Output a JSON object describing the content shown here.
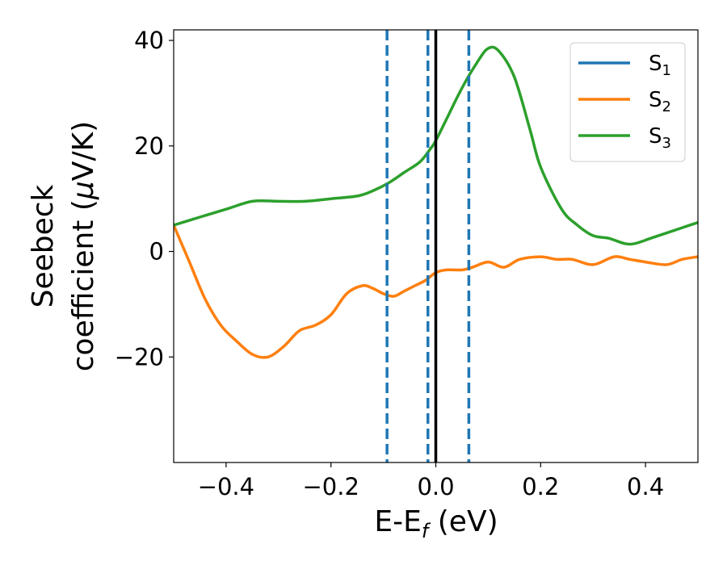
{
  "chart_data": {
    "type": "line",
    "xlabel": "E-E",
    "xlabel_subscript": "f",
    "xlabel_unit": " (eV)",
    "ylabel_line1": "Seebeck",
    "ylabel_line2": "coefficient  (",
    "ylabel_mu": "μ",
    "ylabel_unit": "V/K)",
    "xlim": [
      -0.5,
      0.5
    ],
    "ylim": [
      -40,
      42
    ],
    "xticks": [
      -0.4,
      -0.2,
      0.0,
      0.2,
      0.4
    ],
    "xtick_labels": [
      "−0.4",
      "−0.2",
      "0.0",
      "0.2",
      "0.4"
    ],
    "yticks": [
      -20,
      0,
      20,
      40
    ],
    "ytick_labels": [
      "−20",
      "0",
      "20",
      "40"
    ],
    "grid": false,
    "legend_position": "top-right",
    "vlines": [
      {
        "x": -0.093,
        "style": "dashed",
        "color": "#1f77b4"
      },
      {
        "x": -0.015,
        "style": "dashed",
        "color": "#1f77b4"
      },
      {
        "x": 0.063,
        "style": "dashed",
        "color": "#1f77b4"
      },
      {
        "x": 0.0,
        "style": "solid",
        "color": "#000000"
      }
    ],
    "series": [
      {
        "name": "S",
        "subscript": "1",
        "color": "#1f77b4",
        "x": [],
        "y": []
      },
      {
        "name": "S",
        "subscript": "2",
        "color": "#ff7f0e",
        "x": [
          -0.5,
          -0.47,
          -0.44,
          -0.41,
          -0.38,
          -0.35,
          -0.32,
          -0.29,
          -0.26,
          -0.23,
          -0.2,
          -0.17,
          -0.14,
          -0.12,
          -0.1,
          -0.08,
          -0.06,
          -0.04,
          -0.02,
          0.0,
          0.02,
          0.05,
          0.07,
          0.1,
          0.13,
          0.16,
          0.2,
          0.23,
          0.26,
          0.3,
          0.34,
          0.37,
          0.4,
          0.44,
          0.47,
          0.5
        ],
        "y": [
          5,
          -2,
          -9,
          -14,
          -17,
          -19.5,
          -20,
          -18,
          -15,
          -14,
          -12,
          -8,
          -6.5,
          -7,
          -8,
          -8.5,
          -7.5,
          -6.5,
          -5.5,
          -4,
          -3.5,
          -3.5,
          -3,
          -2,
          -3,
          -1.5,
          -1,
          -1.5,
          -1.5,
          -2.5,
          -1,
          -1.5,
          -2,
          -2.5,
          -1.5,
          -1
        ]
      },
      {
        "name": "S",
        "subscript": "3",
        "color": "#2ca02c",
        "x": [
          -0.5,
          -0.45,
          -0.4,
          -0.35,
          -0.3,
          -0.25,
          -0.2,
          -0.15,
          -0.12,
          -0.09,
          -0.06,
          -0.03,
          -0.01,
          0.0,
          0.02,
          0.05,
          0.08,
          0.1,
          0.12,
          0.15,
          0.18,
          0.2,
          0.24,
          0.27,
          0.3,
          0.33,
          0.36,
          0.38,
          0.41,
          0.44,
          0.47,
          0.5
        ],
        "y": [
          5,
          6.5,
          8,
          9.5,
          9.5,
          9.5,
          10,
          10.5,
          11.5,
          13,
          15,
          17,
          19.5,
          21,
          25,
          31,
          36,
          38.5,
          38,
          33,
          23,
          16,
          8,
          5,
          3,
          2.5,
          1.5,
          1.5,
          2.5,
          3.5,
          4.5,
          5.5
        ]
      }
    ]
  }
}
